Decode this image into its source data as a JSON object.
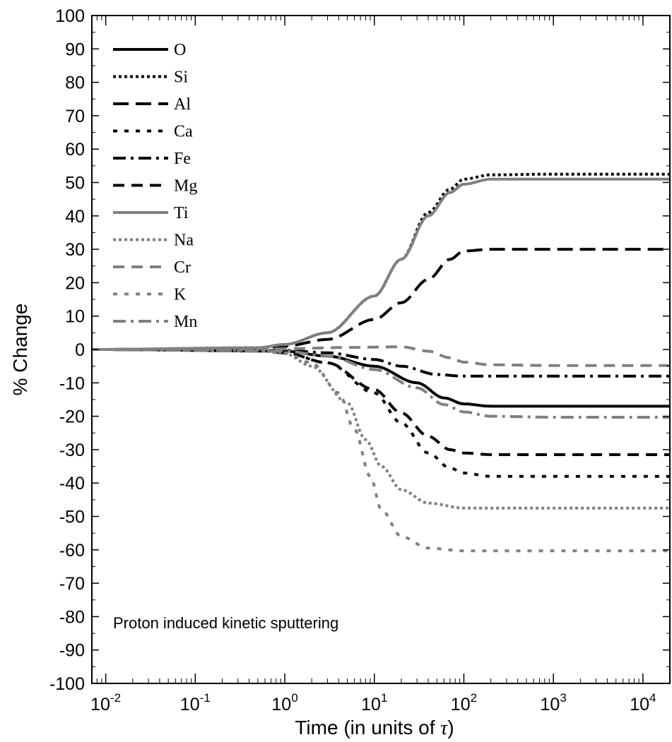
{
  "chart_data": {
    "type": "line",
    "xscale": "log",
    "xlim": [
      0.007,
      20000
    ],
    "ylim": [
      -100,
      100
    ],
    "xlabel_main": "Time (in units of ",
    "xlabel_symbol": "τ",
    "xlabel_end": ")",
    "ylabel": "% Change",
    "annotation": "Proton induced kinetic sputtering",
    "grid": false,
    "legend_placement": "top-left",
    "x_ticks": [
      {
        "value": 0.01,
        "base": "10",
        "exp": "-2"
      },
      {
        "value": 0.1,
        "base": "10",
        "exp": "-1"
      },
      {
        "value": 1,
        "base": "10",
        "exp": "0"
      },
      {
        "value": 10,
        "base": "10",
        "exp": "1"
      },
      {
        "value": 100,
        "base": "10",
        "exp": "2"
      },
      {
        "value": 1000,
        "base": "10",
        "exp": "3"
      },
      {
        "value": 10000,
        "base": "10",
        "exp": "4"
      }
    ],
    "y_ticks": [
      {
        "value": 100,
        "label": "100"
      },
      {
        "value": 90,
        "label": "90"
      },
      {
        "value": 80,
        "label": "80"
      },
      {
        "value": 70,
        "label": "70"
      },
      {
        "value": 60,
        "label": "60"
      },
      {
        "value": 50,
        "label": "50"
      },
      {
        "value": 40,
        "label": "40"
      },
      {
        "value": 30,
        "label": "30"
      },
      {
        "value": 20,
        "label": "20"
      },
      {
        "value": 10,
        "label": "10"
      },
      {
        "value": 0,
        "label": "0"
      },
      {
        "value": -10,
        "label": "-10"
      },
      {
        "value": -20,
        "label": "-20"
      },
      {
        "value": -30,
        "label": "-30"
      },
      {
        "value": -40,
        "label": "-40"
      },
      {
        "value": -50,
        "label": "-50"
      },
      {
        "value": -60,
        "label": "-60"
      },
      {
        "value": -70,
        "label": "-70"
      },
      {
        "value": -80,
        "label": "-80"
      },
      {
        "value": -90,
        "label": "-90"
      },
      {
        "value": -100,
        "label": "-100"
      }
    ],
    "series": [
      {
        "name": "O",
        "color": "#000000",
        "dash": "solid",
        "points": [
          [
            0.007,
            0
          ],
          [
            1,
            -0.5
          ],
          [
            3,
            -2
          ],
          [
            10,
            -5
          ],
          [
            30,
            -10
          ],
          [
            60,
            -14.5
          ],
          [
            100,
            -16.3
          ],
          [
            200,
            -17
          ],
          [
            1000,
            -17
          ],
          [
            20000,
            -17
          ]
        ]
      },
      {
        "name": "Si",
        "color": "#000000",
        "dash": "dot",
        "points": [
          [
            0.007,
            0
          ],
          [
            0.5,
            0.5
          ],
          [
            1,
            1.5
          ],
          [
            3,
            5
          ],
          [
            10,
            16
          ],
          [
            20,
            27
          ],
          [
            40,
            41
          ],
          [
            70,
            48
          ],
          [
            100,
            51
          ],
          [
            200,
            52.3
          ],
          [
            1000,
            52.5
          ],
          [
            20000,
            52.5
          ]
        ]
      },
      {
        "name": "Al",
        "color": "#000000",
        "dash": "longdash",
        "points": [
          [
            0.007,
            0
          ],
          [
            0.5,
            0.3
          ],
          [
            1,
            1
          ],
          [
            3,
            3
          ],
          [
            10,
            9
          ],
          [
            20,
            14
          ],
          [
            40,
            21
          ],
          [
            70,
            27
          ],
          [
            100,
            29.5
          ],
          [
            200,
            30
          ],
          [
            1000,
            30
          ],
          [
            20000,
            30
          ]
        ]
      },
      {
        "name": "Ca",
        "color": "#000000",
        "dash": "dashdot2",
        "points": [
          [
            0.007,
            0
          ],
          [
            0.5,
            -0.2
          ],
          [
            1,
            -1
          ],
          [
            3,
            -4
          ],
          [
            10,
            -13
          ],
          [
            20,
            -22
          ],
          [
            40,
            -31
          ],
          [
            70,
            -35.5
          ],
          [
            100,
            -37
          ],
          [
            200,
            -38
          ],
          [
            1000,
            -38
          ],
          [
            20000,
            -38
          ]
        ]
      },
      {
        "name": "Fe",
        "color": "#000000",
        "dash": "dashdot",
        "points": [
          [
            0.007,
            0
          ],
          [
            1,
            -0.3
          ],
          [
            3,
            -1
          ],
          [
            10,
            -3
          ],
          [
            20,
            -5
          ],
          [
            50,
            -7.5
          ],
          [
            100,
            -8
          ],
          [
            200,
            -8
          ],
          [
            20000,
            -8
          ]
        ]
      },
      {
        "name": "Mg",
        "color": "#000000",
        "dash": "dash",
        "points": [
          [
            0.007,
            0
          ],
          [
            0.5,
            -0.2
          ],
          [
            1,
            -1
          ],
          [
            3,
            -4
          ],
          [
            10,
            -12
          ],
          [
            20,
            -19
          ],
          [
            40,
            -26
          ],
          [
            70,
            -30
          ],
          [
            100,
            -31
          ],
          [
            200,
            -31.5
          ],
          [
            1000,
            -31.5
          ],
          [
            20000,
            -31.5
          ]
        ]
      },
      {
        "name": "Ti",
        "color": "#808080",
        "dash": "solid",
        "points": [
          [
            0.007,
            0
          ],
          [
            0.5,
            0.5
          ],
          [
            1,
            1.5
          ],
          [
            3,
            5
          ],
          [
            10,
            16
          ],
          [
            20,
            27
          ],
          [
            40,
            40
          ],
          [
            70,
            47
          ],
          [
            100,
            49.5
          ],
          [
            200,
            51
          ],
          [
            1000,
            51
          ],
          [
            20000,
            51
          ]
        ]
      },
      {
        "name": "Na",
        "color": "#808080",
        "dash": "dot",
        "points": [
          [
            0.007,
            0
          ],
          [
            0.5,
            -0.3
          ],
          [
            1,
            -1.2
          ],
          [
            2,
            -5
          ],
          [
            5,
            -16
          ],
          [
            8,
            -27
          ],
          [
            12,
            -35
          ],
          [
            20,
            -42
          ],
          [
            40,
            -46
          ],
          [
            100,
            -47.5
          ],
          [
            1000,
            -47.5
          ],
          [
            20000,
            -47.5
          ]
        ]
      },
      {
        "name": "Cr",
        "color": "#808080",
        "dash": "dash",
        "points": [
          [
            0.007,
            0
          ],
          [
            1,
            0.2
          ],
          [
            5,
            0.6
          ],
          [
            20,
            0.8
          ],
          [
            40,
            -0.5
          ],
          [
            70,
            -2.5
          ],
          [
            100,
            -3.8
          ],
          [
            200,
            -4.6
          ],
          [
            1000,
            -4.8
          ],
          [
            20000,
            -4.8
          ]
        ]
      },
      {
        "name": "K",
        "color": "#808080",
        "dash": "dashdot2",
        "points": [
          [
            0.007,
            0
          ],
          [
            0.5,
            -0.2
          ],
          [
            1,
            -1
          ],
          [
            2,
            -4
          ],
          [
            4,
            -13
          ],
          [
            6,
            -24
          ],
          [
            9,
            -38
          ],
          [
            12,
            -48
          ],
          [
            20,
            -56
          ],
          [
            40,
            -59.5
          ],
          [
            100,
            -60.3
          ],
          [
            1000,
            -60.3
          ],
          [
            20000,
            -60.3
          ]
        ]
      },
      {
        "name": "Mn",
        "color": "#808080",
        "dash": "dashdot",
        "points": [
          [
            0.007,
            0
          ],
          [
            1,
            -0.5
          ],
          [
            3,
            -2
          ],
          [
            10,
            -6
          ],
          [
            30,
            -11.5
          ],
          [
            60,
            -16.5
          ],
          [
            100,
            -18.7
          ],
          [
            200,
            -20
          ],
          [
            1000,
            -20.3
          ],
          [
            20000,
            -20.3
          ]
        ]
      }
    ]
  }
}
